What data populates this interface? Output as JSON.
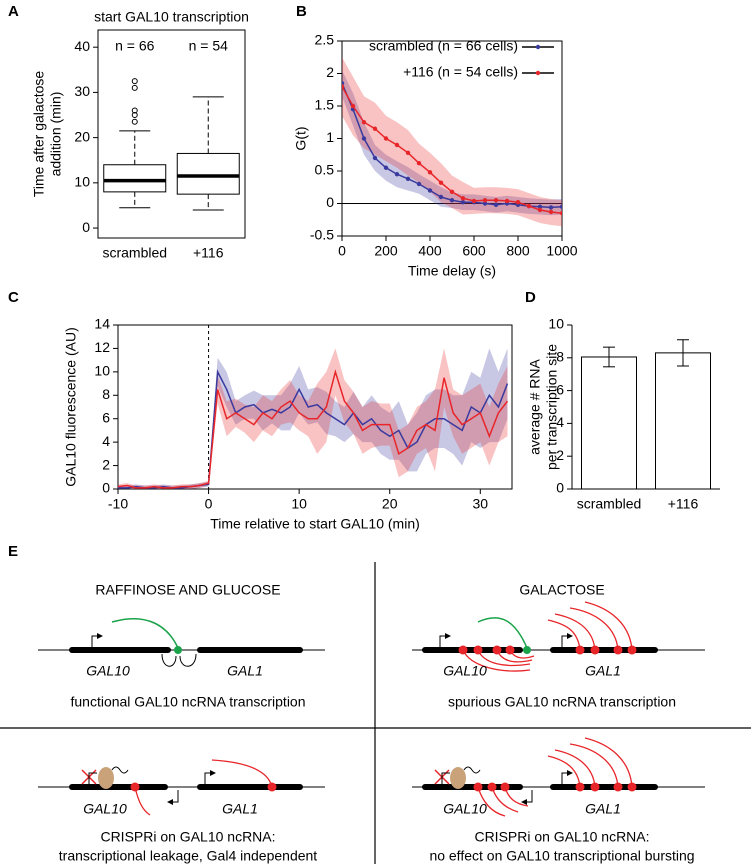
{
  "panel_labels": [
    "A",
    "B",
    "C",
    "D",
    "E"
  ],
  "chart_data": [
    {
      "type": "box",
      "title": "start GAL10 transcription",
      "ylabel": [
        "Time after galactose",
        "addition (min)"
      ],
      "categories": [
        "scrambled",
        "+116"
      ],
      "annotations": [
        "n = 66",
        "n = 54"
      ],
      "color": "#000000",
      "boxes": [
        {
          "min": 4.5,
          "q1": 8,
          "median": 10.5,
          "q3": 14,
          "max": 21.5,
          "outliers": [
            23.5,
            25,
            26,
            31,
            32.5
          ]
        },
        {
          "min": 4,
          "q1": 7.5,
          "median": 11.5,
          "q3": 16.5,
          "max": 29,
          "outliers": []
        }
      ],
      "ylim": [
        -2.2,
        43.8
      ],
      "yticks": [
        0,
        10,
        20,
        30,
        40
      ]
    },
    {
      "type": "line",
      "xlabel": "Time delay (s)",
      "ylabel": "G(t)",
      "legend": "upper-right",
      "markers": true,
      "hline": 0,
      "x": [
        0,
        50,
        100,
        150,
        200,
        250,
        300,
        350,
        400,
        450,
        500,
        550,
        600,
        650,
        700,
        750,
        800,
        850,
        900,
        950,
        1000
      ],
      "series": [
        {
          "name": "scrambled (n = 66 cells)",
          "color": "#3a3a9e",
          "values": [
            1.85,
            1.45,
            1.0,
            0.7,
            0.55,
            0.45,
            0.38,
            0.3,
            0.2,
            0.1,
            0.05,
            0.02,
            0.02,
            0.0,
            -0.02,
            0.0,
            -0.02,
            -0.04,
            -0.05,
            -0.06,
            -0.05
          ],
          "err": [
            0.2,
            0.25,
            0.25,
            0.2,
            0.2,
            0.2,
            0.18,
            0.15,
            0.15,
            0.15,
            0.12,
            0.12,
            0.12,
            0.12,
            0.12,
            0.12,
            0.12,
            0.12,
            0.12,
            0.12,
            0.12
          ]
        },
        {
          "name": "+116 (n = 54 cells)",
          "color": "#e8262a",
          "values": [
            1.8,
            1.5,
            1.25,
            1.15,
            1.0,
            0.9,
            0.78,
            0.62,
            0.48,
            0.32,
            0.18,
            0.08,
            0.04,
            0.05,
            0.05,
            0.04,
            0.02,
            -0.04,
            -0.1,
            -0.13,
            -0.15
          ],
          "err": [
            0.45,
            0.45,
            0.4,
            0.4,
            0.35,
            0.35,
            0.35,
            0.3,
            0.3,
            0.3,
            0.25,
            0.25,
            0.2,
            0.2,
            0.2,
            0.2,
            0.2,
            0.2,
            0.2,
            0.2,
            0.2
          ]
        }
      ],
      "xlim": [
        0,
        1000
      ],
      "xticks": [
        0,
        200,
        400,
        600,
        800,
        1000
      ],
      "ylim": [
        -0.5,
        2.5
      ],
      "yticks": [
        -0.5,
        0,
        0.5,
        1,
        1.5,
        2,
        2.5
      ]
    },
    {
      "type": "line",
      "xlabel": "Time relative to start GAL10 (min)",
      "ylabel": "GAL10 fluorescence (AU)",
      "markers": false,
      "vline": 0,
      "x": [
        -10,
        -9,
        -8,
        -7,
        -6,
        -5,
        -4,
        -3,
        -2,
        -1,
        0,
        1,
        2,
        3,
        4,
        5,
        6,
        7,
        8,
        9,
        10,
        11,
        12,
        13,
        14,
        15,
        16,
        17,
        18,
        19,
        20,
        21,
        22,
        23,
        24,
        25,
        26,
        27,
        28,
        29,
        30,
        31,
        32,
        33
      ],
      "series": [
        {
          "color": "#3a3a9e",
          "values": [
            0.1,
            0.1,
            0.2,
            0.1,
            0.1,
            0.2,
            0.1,
            0.1,
            0.2,
            0.3,
            0.4,
            10,
            8.5,
            6.5,
            7,
            7.2,
            6.5,
            6.8,
            6.5,
            7,
            8.5,
            7,
            7.2,
            6.5,
            6,
            5.5,
            6.5,
            5.5,
            6,
            5,
            4.5,
            5,
            3.5,
            4,
            5.5,
            6,
            6,
            5.5,
            5,
            7,
            6.5,
            8,
            7,
            9
          ],
          "err": [
            0.2,
            0.2,
            0.2,
            0.2,
            0.2,
            0.2,
            0.2,
            0.2,
            0.2,
            0.2,
            0.2,
            1.2,
            1.5,
            1,
            1,
            1.2,
            1.5,
            1.2,
            1.5,
            2,
            2,
            1.5,
            1.5,
            1.8,
            1.5,
            1.5,
            1.8,
            1.5,
            2,
            2,
            2,
            2.5,
            2,
            2.5,
            2.5,
            2.5,
            2.5,
            2.5,
            3,
            3,
            3,
            4,
            3,
            3
          ]
        },
        {
          "color": "#e8262a",
          "values": [
            0.2,
            0.3,
            0.1,
            0.1,
            0.2,
            0.1,
            0.1,
            0.2,
            0.2,
            0.3,
            0.5,
            8.5,
            6,
            6.5,
            6,
            5.5,
            6.5,
            6,
            7,
            7.5,
            6.5,
            6,
            6,
            7,
            10,
            7.5,
            6.5,
            5,
            5.5,
            5.5,
            5.5,
            3,
            3.5,
            5,
            5.5,
            5,
            9.5,
            6.5,
            5.5,
            6,
            6.5,
            4.5,
            6.5,
            7.5
          ],
          "err": [
            0.2,
            0.2,
            0.2,
            0.2,
            0.2,
            0.2,
            0.2,
            0.2,
            0.2,
            0.2,
            0.2,
            1.2,
            1.5,
            1.2,
            1.2,
            1.5,
            1.5,
            1.5,
            1.5,
            1.8,
            1.5,
            1.5,
            3,
            3,
            2,
            1.8,
            1.8,
            2,
            2,
            1.8,
            1.8,
            2,
            2,
            2,
            2,
            3.5,
            2.5,
            2,
            2.5,
            2.5,
            2.5,
            2.5,
            2.5,
            3
          ]
        }
      ],
      "xlim": [
        -10,
        33.5
      ],
      "xticks": [
        -10,
        0,
        10,
        20,
        30
      ],
      "ylim": [
        0,
        14
      ],
      "yticks": [
        0,
        2,
        4,
        6,
        8,
        10,
        12,
        14
      ]
    },
    {
      "type": "bar",
      "ylabel": [
        "average # RNA",
        "per transcription site"
      ],
      "color": "#ffffff",
      "categories": [
        "scrambled",
        "+116"
      ],
      "values": [
        8.05,
        8.3
      ],
      "errors": [
        0.6,
        0.8
      ],
      "ylim": [
        0,
        10
      ],
      "yticks": [
        0,
        2,
        4,
        6,
        8,
        10
      ]
    }
  ],
  "diagram": {
    "quadrants": [
      {
        "title": "RAFFINOSE AND GLUCOSE",
        "genes": [
          "GAL10",
          "GAL1"
        ],
        "caption": [
          "functional GAL10 ncRNA transcription"
        ]
      },
      {
        "title": "GALACTOSE",
        "genes": [
          "GAL10",
          "GAL1"
        ],
        "caption": [
          "spurious GAL10 ncRNA transcription"
        ]
      },
      {
        "genes": [
          "GAL10",
          "GAL1"
        ],
        "caption": [
          "CRISPRi on GAL10 ncRNA:",
          "transcriptional leakage, Gal4 independent"
        ]
      },
      {
        "genes": [
          "GAL10",
          "GAL1"
        ],
        "caption": [
          "CRISPRi on GAL10 ncRNA:",
          "no effect on GAL10 transcriptional bursting"
        ]
      }
    ]
  }
}
